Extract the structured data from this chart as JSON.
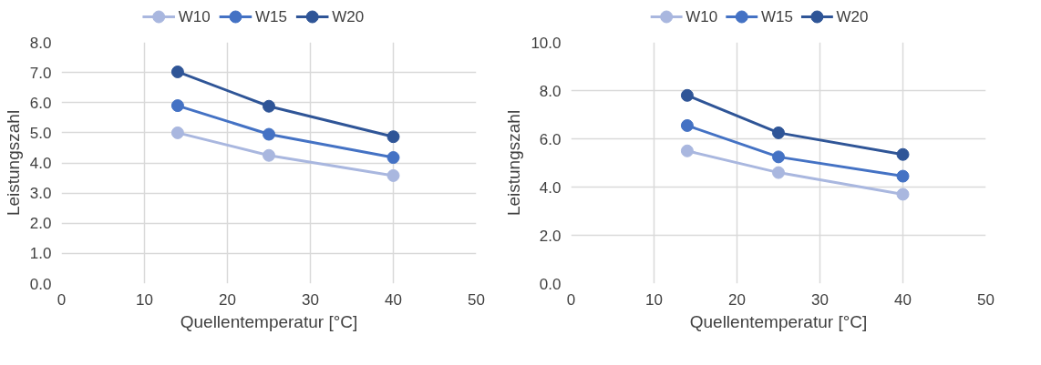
{
  "chart_data": [
    {
      "type": "line",
      "xlabel": "Quellentemperatur [°C]",
      "ylabel": "Leistungszahl",
      "x": [
        14,
        25,
        40
      ],
      "xlim": [
        0,
        50
      ],
      "xticks": [
        0,
        10,
        20,
        30,
        40,
        50
      ],
      "ylim": [
        0,
        8
      ],
      "yticks": [
        {
          "value": 0,
          "label": "0.0"
        },
        {
          "value": 1,
          "label": "1.0"
        },
        {
          "value": 2,
          "label": "2.0"
        },
        {
          "value": 3,
          "label": "3.0"
        },
        {
          "value": 4,
          "label": "4.0"
        },
        {
          "value": 5,
          "label": "5.0"
        },
        {
          "value": 6,
          "label": "6.0"
        },
        {
          "value": 7,
          "label": "7.0"
        },
        {
          "value": 8,
          "label": "8.0"
        }
      ],
      "grid": true,
      "legend": "top",
      "marker": "circle",
      "series": [
        {
          "name": "W10",
          "color": "#a9b7df",
          "values": [
            5.0,
            4.25,
            3.58
          ]
        },
        {
          "name": "W15",
          "color": "#4472c4",
          "values": [
            5.9,
            4.95,
            4.18
          ]
        },
        {
          "name": "W20",
          "color": "#2f5597",
          "values": [
            7.02,
            5.88,
            4.87
          ]
        }
      ]
    },
    {
      "type": "line",
      "xlabel": "Quellentemperatur [°C]",
      "ylabel": "Leistungszahl",
      "x": [
        14,
        25,
        40
      ],
      "xlim": [
        0,
        50
      ],
      "xticks": [
        0,
        10,
        20,
        30,
        40,
        50
      ],
      "ylim": [
        0,
        10
      ],
      "yticks": [
        {
          "value": 0,
          "label": "0.0"
        },
        {
          "value": 2,
          "label": "2.0"
        },
        {
          "value": 4,
          "label": "4.0"
        },
        {
          "value": 6,
          "label": "6.0"
        },
        {
          "value": 8,
          "label": "8.0"
        },
        {
          "value": 10,
          "label": "10.0"
        }
      ],
      "grid": true,
      "legend": "top",
      "marker": "circle",
      "series": [
        {
          "name": "W10",
          "color": "#a9b7df",
          "values": [
            5.5,
            4.6,
            3.7
          ]
        },
        {
          "name": "W15",
          "color": "#4472c4",
          "values": [
            6.55,
            5.25,
            4.45
          ]
        },
        {
          "name": "W20",
          "color": "#2f5597",
          "values": [
            7.8,
            6.25,
            5.35
          ]
        }
      ]
    }
  ]
}
